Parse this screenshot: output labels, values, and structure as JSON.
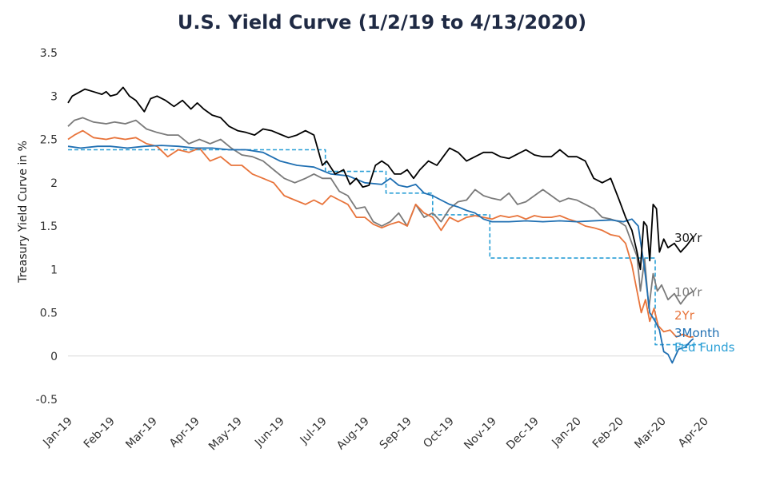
{
  "chart_data": {
    "type": "line",
    "title": "U.S. Yield Curve (1/2/19 to 4/13/2020)",
    "xlabel": "",
    "ylabel": "Treasury Yield Curve in %",
    "ylim": [
      -0.5,
      3.5
    ],
    "y_ticks": [
      "3.5",
      "3",
      "2.5",
      "2",
      "1.5",
      "1",
      "0.5",
      "0",
      "-0.5"
    ],
    "y_tick_values": [
      3.5,
      3,
      2.5,
      2,
      1.5,
      1,
      0.5,
      0,
      -0.5
    ],
    "x_ticks": [
      "Jan-19",
      "Feb-19",
      "Mar-19",
      "Apr-19",
      "May-19",
      "Jun-19",
      "Jul-19",
      "Aug-19",
      "Sep-19",
      "Oct-19",
      "Nov-19",
      "Dec-19",
      "Jan-20",
      "Feb-20",
      "Mar-20",
      "Apr-20"
    ],
    "grid": false,
    "zero_line": true,
    "legend": "direct labels at right end of lines",
    "series": [
      {
        "name": "30Yr",
        "color": "#000000",
        "dashed": false,
        "x": [
          0,
          0.1,
          0.4,
          0.6,
          0.8,
          0.9,
          1.0,
          1.15,
          1.3,
          1.45,
          1.6,
          1.8,
          1.95,
          2.1,
          2.3,
          2.5,
          2.7,
          2.9,
          3.05,
          3.2,
          3.4,
          3.6,
          3.8,
          4.0,
          4.2,
          4.4,
          4.6,
          4.8,
          5.0,
          5.2,
          5.4,
          5.6,
          5.8,
          6.0,
          6.1,
          6.3,
          6.5,
          6.65,
          6.8,
          6.95,
          7.1,
          7.25,
          7.4,
          7.55,
          7.7,
          7.85,
          8.0,
          8.15,
          8.3,
          8.5,
          8.7,
          8.85,
          9.0,
          9.2,
          9.4,
          9.6,
          9.8,
          10.0,
          10.2,
          10.4,
          10.6,
          10.8,
          11.0,
          11.2,
          11.4,
          11.6,
          11.8,
          12.0,
          12.2,
          12.4,
          12.6,
          12.8,
          13.0,
          13.15,
          13.3,
          13.42,
          13.5,
          13.58,
          13.65,
          13.72,
          13.8,
          13.88,
          13.95,
          14.05,
          14.15,
          14.3,
          14.45,
          14.6,
          14.75
        ],
        "y": [
          2.92,
          3.0,
          3.08,
          3.05,
          3.02,
          3.05,
          3.0,
          3.02,
          3.1,
          3.0,
          2.95,
          2.82,
          2.97,
          3.0,
          2.95,
          2.88,
          2.95,
          2.85,
          2.92,
          2.85,
          2.78,
          2.75,
          2.65,
          2.6,
          2.58,
          2.55,
          2.62,
          2.6,
          2.56,
          2.52,
          2.55,
          2.6,
          2.55,
          2.2,
          2.25,
          2.1,
          2.15,
          1.98,
          2.05,
          1.95,
          1.97,
          2.2,
          2.25,
          2.2,
          2.1,
          2.1,
          2.15,
          2.05,
          2.15,
          2.25,
          2.2,
          2.3,
          2.4,
          2.35,
          2.25,
          2.3,
          2.35,
          2.35,
          2.3,
          2.28,
          2.33,
          2.38,
          2.32,
          2.3,
          2.3,
          2.38,
          2.3,
          2.3,
          2.25,
          2.05,
          2.0,
          2.05,
          1.8,
          1.6,
          1.45,
          1.2,
          1.0,
          1.55,
          1.5,
          1.1,
          1.75,
          1.7,
          1.2,
          1.35,
          1.25,
          1.3,
          1.2,
          1.28,
          1.38
        ]
      },
      {
        "name": "10Yr",
        "color": "#7a7a7a",
        "dashed": false,
        "x": [
          0,
          0.15,
          0.35,
          0.6,
          0.9,
          1.1,
          1.35,
          1.6,
          1.85,
          2.1,
          2.35,
          2.6,
          2.85,
          3.1,
          3.35,
          3.6,
          3.85,
          4.1,
          4.35,
          4.6,
          4.85,
          5.1,
          5.35,
          5.6,
          5.8,
          6.0,
          6.2,
          6.4,
          6.6,
          6.8,
          7.0,
          7.2,
          7.4,
          7.6,
          7.8,
          8.0,
          8.2,
          8.4,
          8.6,
          8.8,
          9.0,
          9.2,
          9.4,
          9.6,
          9.8,
          10.0,
          10.2,
          10.4,
          10.6,
          10.8,
          11.0,
          11.2,
          11.4,
          11.6,
          11.8,
          12.0,
          12.2,
          12.4,
          12.6,
          12.8,
          13.0,
          13.15,
          13.3,
          13.42,
          13.5,
          13.6,
          13.7,
          13.8,
          13.9,
          14.0,
          14.15,
          14.3,
          14.45,
          14.6,
          14.75
        ],
        "y": [
          2.65,
          2.72,
          2.75,
          2.7,
          2.68,
          2.7,
          2.68,
          2.72,
          2.62,
          2.58,
          2.55,
          2.55,
          2.45,
          2.5,
          2.45,
          2.5,
          2.4,
          2.32,
          2.3,
          2.25,
          2.15,
          2.05,
          2.0,
          2.05,
          2.1,
          2.05,
          2.05,
          1.9,
          1.85,
          1.7,
          1.72,
          1.55,
          1.5,
          1.55,
          1.65,
          1.5,
          1.75,
          1.6,
          1.65,
          1.55,
          1.7,
          1.78,
          1.8,
          1.92,
          1.85,
          1.82,
          1.8,
          1.88,
          1.75,
          1.78,
          1.85,
          1.92,
          1.85,
          1.78,
          1.82,
          1.8,
          1.75,
          1.7,
          1.6,
          1.58,
          1.55,
          1.5,
          1.3,
          1.15,
          0.75,
          1.12,
          0.55,
          0.95,
          0.75,
          0.82,
          0.65,
          0.72,
          0.6,
          0.7,
          0.75
        ]
      },
      {
        "name": "2Yr",
        "color": "#e8743b",
        "dashed": false,
        "x": [
          0,
          0.15,
          0.35,
          0.6,
          0.9,
          1.1,
          1.35,
          1.6,
          1.85,
          2.1,
          2.35,
          2.6,
          2.85,
          3.1,
          3.35,
          3.6,
          3.85,
          4.1,
          4.35,
          4.6,
          4.85,
          5.1,
          5.35,
          5.6,
          5.8,
          6.0,
          6.2,
          6.4,
          6.6,
          6.8,
          7.0,
          7.2,
          7.4,
          7.6,
          7.8,
          8.0,
          8.2,
          8.4,
          8.6,
          8.8,
          9.0,
          9.2,
          9.4,
          9.6,
          9.8,
          10.0,
          10.2,
          10.4,
          10.6,
          10.8,
          11.0,
          11.2,
          11.4,
          11.6,
          11.8,
          12.0,
          12.2,
          12.4,
          12.6,
          12.8,
          13.0,
          13.15,
          13.3,
          13.42,
          13.52,
          13.62,
          13.72,
          13.82,
          13.92,
          14.05,
          14.2,
          14.35,
          14.5,
          14.65,
          14.75
        ],
        "y": [
          2.5,
          2.55,
          2.6,
          2.52,
          2.5,
          2.52,
          2.5,
          2.52,
          2.45,
          2.42,
          2.3,
          2.38,
          2.35,
          2.4,
          2.25,
          2.3,
          2.2,
          2.2,
          2.1,
          2.05,
          2.0,
          1.85,
          1.8,
          1.75,
          1.8,
          1.75,
          1.85,
          1.8,
          1.75,
          1.6,
          1.6,
          1.52,
          1.48,
          1.52,
          1.55,
          1.5,
          1.75,
          1.65,
          1.6,
          1.45,
          1.6,
          1.55,
          1.6,
          1.62,
          1.6,
          1.58,
          1.62,
          1.6,
          1.62,
          1.58,
          1.62,
          1.6,
          1.6,
          1.62,
          1.58,
          1.55,
          1.5,
          1.48,
          1.45,
          1.4,
          1.38,
          1.3,
          1.05,
          0.75,
          0.5,
          0.65,
          0.4,
          0.55,
          0.35,
          0.28,
          0.3,
          0.22,
          0.25,
          0.22,
          0.22
        ]
      },
      {
        "name": "3Month",
        "color": "#1f6fb2",
        "dashed": false,
        "x": [
          0,
          0.3,
          0.7,
          1.0,
          1.4,
          1.8,
          2.2,
          2.6,
          3.0,
          3.4,
          3.8,
          4.2,
          4.6,
          5.0,
          5.4,
          5.8,
          6.2,
          6.6,
          7.0,
          7.4,
          7.6,
          7.8,
          8.0,
          8.2,
          8.4,
          8.6,
          8.8,
          9.0,
          9.2,
          9.4,
          9.6,
          9.8,
          10.0,
          10.4,
          10.8,
          11.2,
          11.6,
          12.0,
          12.4,
          12.8,
          13.1,
          13.3,
          13.45,
          13.6,
          13.72,
          13.85,
          13.95,
          14.05,
          14.15,
          14.25,
          14.4,
          14.55,
          14.7,
          14.75
        ],
        "y": [
          2.42,
          2.4,
          2.42,
          2.42,
          2.4,
          2.42,
          2.43,
          2.42,
          2.4,
          2.4,
          2.38,
          2.38,
          2.35,
          2.25,
          2.2,
          2.18,
          2.1,
          2.08,
          2.0,
          1.98,
          2.05,
          1.97,
          1.95,
          1.98,
          1.88,
          1.85,
          1.8,
          1.75,
          1.72,
          1.68,
          1.65,
          1.58,
          1.55,
          1.55,
          1.56,
          1.55,
          1.56,
          1.55,
          1.56,
          1.57,
          1.55,
          1.58,
          1.5,
          1.0,
          0.5,
          0.4,
          0.3,
          0.05,
          0.02,
          -0.08,
          0.08,
          0.1,
          0.18,
          0.2
        ]
      },
      {
        "name": "Fed Funds",
        "color": "#2a9fd6",
        "dashed": true,
        "x": [
          0,
          6.07,
          6.07,
          7.5,
          7.5,
          8.6,
          8.6,
          9.95,
          9.95,
          13.54,
          13.54,
          13.85,
          13.85,
          14.95
        ],
        "y": [
          2.38,
          2.38,
          2.13,
          2.13,
          1.88,
          1.88,
          1.63,
          1.63,
          1.13,
          1.13,
          1.13,
          1.13,
          0.13,
          0.13
        ]
      }
    ]
  }
}
